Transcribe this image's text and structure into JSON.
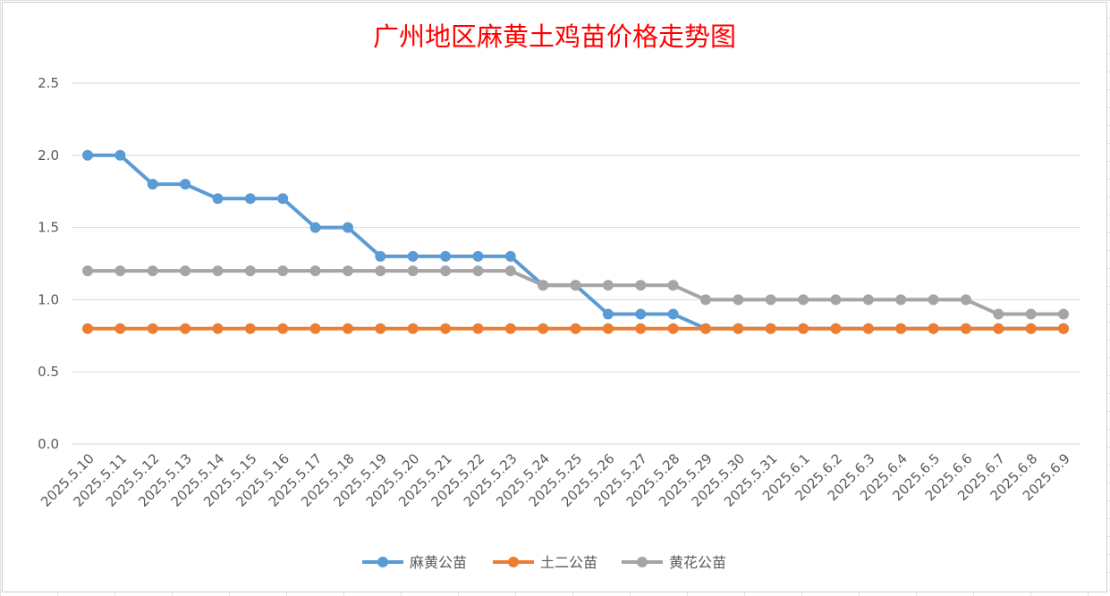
{
  "chart_data": {
    "type": "line",
    "title": "广州地区麻黄土鸡苗价格走势图",
    "ylim": [
      0,
      2.5
    ],
    "yticks": [
      "0.0",
      "0.5",
      "1.0",
      "1.5",
      "2.0",
      "2.5"
    ],
    "ytick_values": [
      0,
      0.5,
      1.0,
      1.5,
      2.0,
      2.5
    ],
    "grid": true,
    "legend_position": "bottom",
    "categories": [
      "2025.5.10",
      "2025.5.11",
      "2025.5.12",
      "2025.5.13",
      "2025.5.14",
      "2025.5.15",
      "2025.5.16",
      "2025.5.17",
      "2025.5.18",
      "2025.5.19",
      "2025.5.20",
      "2025.5.21",
      "2025.5.22",
      "2025.5.23",
      "2025.5.24",
      "2025.5.25",
      "2025.5.26",
      "2025.5.27",
      "2025.5.28",
      "2025.5.29",
      "2025.5.30",
      "2025.5.31",
      "2025.6.1",
      "2025.6.2",
      "2025.6.3",
      "2025.6.4",
      "2025.6.5",
      "2025.6.6",
      "2025.6.7",
      "2025.6.8",
      "2025.6.9"
    ],
    "series": [
      {
        "name": "麻黄公苗",
        "color": "#5b9bd5",
        "values": [
          2.0,
          2.0,
          1.8,
          1.8,
          1.7,
          1.7,
          1.7,
          1.5,
          1.5,
          1.3,
          1.3,
          1.3,
          1.3,
          1.3,
          1.1,
          1.1,
          0.9,
          0.9,
          0.9,
          0.8,
          0.8,
          0.8,
          0.8,
          0.8,
          0.8,
          0.8,
          0.8,
          0.8,
          0.8,
          0.8,
          0.8
        ]
      },
      {
        "name": "土二公苗",
        "color": "#ed7d31",
        "values": [
          0.8,
          0.8,
          0.8,
          0.8,
          0.8,
          0.8,
          0.8,
          0.8,
          0.8,
          0.8,
          0.8,
          0.8,
          0.8,
          0.8,
          0.8,
          0.8,
          0.8,
          0.8,
          0.8,
          0.8,
          0.8,
          0.8,
          0.8,
          0.8,
          0.8,
          0.8,
          0.8,
          0.8,
          0.8,
          0.8,
          0.8
        ]
      },
      {
        "name": "黄花公苗",
        "color": "#a5a5a5",
        "values": [
          1.2,
          1.2,
          1.2,
          1.2,
          1.2,
          1.2,
          1.2,
          1.2,
          1.2,
          1.2,
          1.2,
          1.2,
          1.2,
          1.2,
          1.1,
          1.1,
          1.1,
          1.1,
          1.1,
          1.0,
          1.0,
          1.0,
          1.0,
          1.0,
          1.0,
          1.0,
          1.0,
          1.0,
          0.9,
          0.9,
          0.9
        ]
      }
    ],
    "draw_order": [
      0,
      2,
      1
    ]
  }
}
